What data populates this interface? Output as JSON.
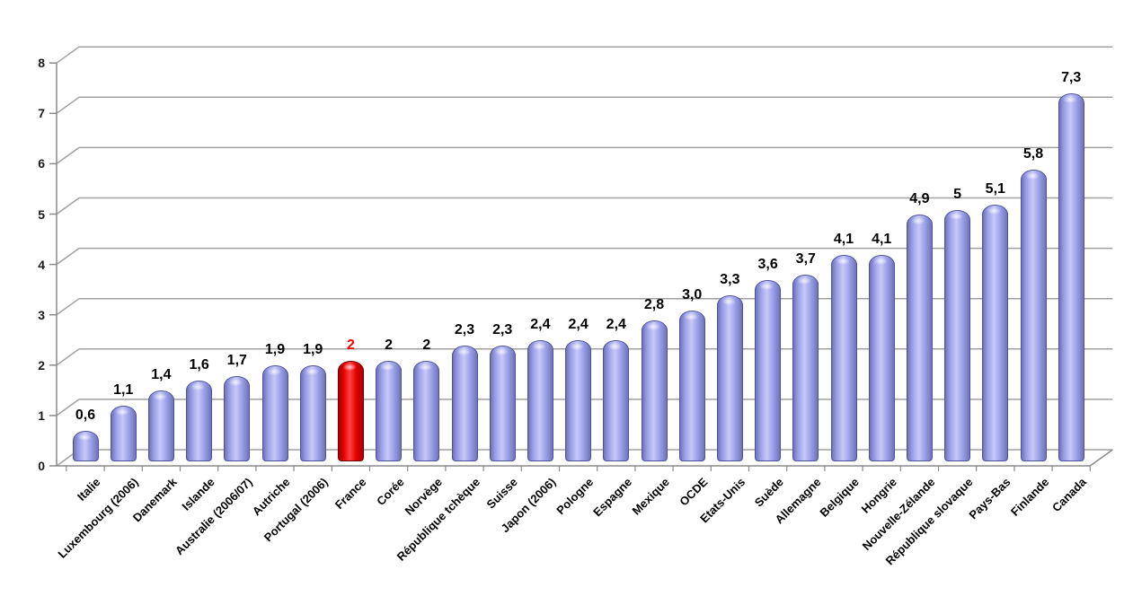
{
  "chart_data": {
    "type": "bar",
    "style": "3d-cylinder",
    "title": "",
    "xlabel": "",
    "ylabel": "",
    "ylim": [
      0,
      8
    ],
    "ytick_step": 1,
    "ytick_labels": [
      "0",
      "1",
      "2",
      "3",
      "4",
      "5",
      "6",
      "7",
      "8"
    ],
    "grid": true,
    "legend": false,
    "categories": [
      "Italie",
      "Luxembourg (2006)",
      "Danemark",
      "Islande",
      "Australie (2006/07)",
      "Autriche",
      "Portugal (2006)",
      "France",
      "Corée",
      "Norvège",
      "République tchèque",
      "Suisse",
      "Japon (2006)",
      "Pologne",
      "Espagne",
      "Mexique",
      "OCDE",
      "Etats-Unis",
      "Suède",
      "Allemagne",
      "Belgique",
      "Hongrie",
      "Nouvelle-Zélande",
      "République slovaque",
      "Pays-Bas",
      "Finlande",
      "Canada"
    ],
    "values": [
      0.6,
      1.1,
      1.4,
      1.6,
      1.7,
      1.9,
      1.9,
      2,
      2,
      2,
      2.3,
      2.3,
      2.4,
      2.4,
      2.4,
      2.8,
      3.0,
      3.3,
      3.6,
      3.7,
      4.1,
      4.1,
      4.9,
      5,
      5.1,
      5.8,
      7.3
    ],
    "value_labels": [
      "0,6",
      "1,1",
      "1,4",
      "1,6",
      "1,7",
      "1,9",
      "1,9",
      "2",
      "2",
      "2",
      "2,3",
      "2,3",
      "2,4",
      "2,4",
      "2,4",
      "2,8",
      "3,0",
      "3,3",
      "3,6",
      "3,7",
      "4,1",
      "4,1",
      "4,9",
      "5",
      "5,1",
      "5,8",
      "7,3"
    ],
    "highlight": {
      "category": "France",
      "index": 7
    },
    "colors": {
      "bar_blue": {
        "edge": "#6F74B9",
        "mid": "#9AA0E8",
        "light": "#C6C9F6",
        "outline": "#4E529B"
      },
      "bar_red": {
        "edge": "#A80000",
        "mid": "#E30000",
        "light": "#FF4040",
        "outline": "#700000"
      },
      "value_label": "#000000",
      "highlight_value_label": "#FF0000",
      "gridline": "#A0A0A0",
      "axis": "#8A8A8A",
      "tick_label": "#1A1A1A"
    }
  }
}
